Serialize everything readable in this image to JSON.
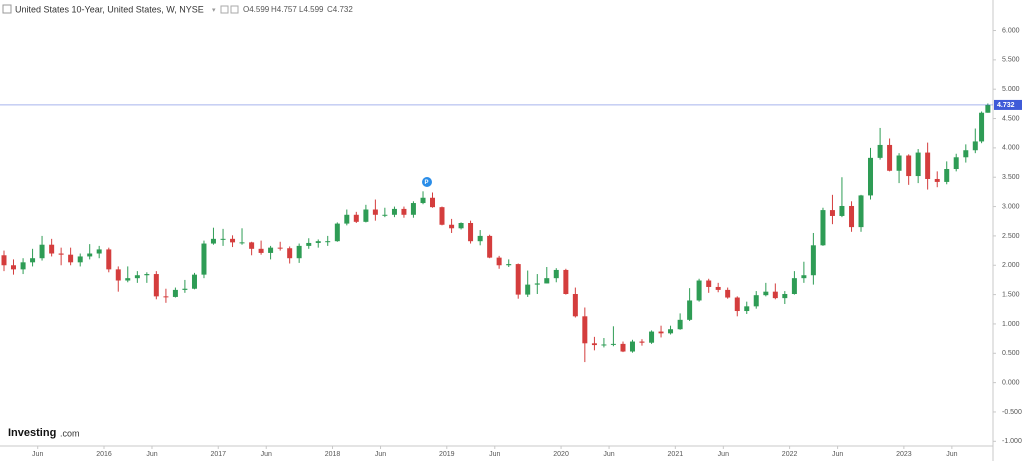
{
  "chart_data": {
    "type": "candlestick",
    "title": "United States 10-Year, United States, W, NYSE",
    "ohlc_labels": [
      "O4.599",
      "H4.757",
      "L4.599",
      "C4.732"
    ],
    "up_color": "#2e9c55",
    "down_color": "#d43d3d",
    "price_line_color": "#3f5bd8",
    "x": [
      2015.125,
      2015.208,
      2015.292,
      2015.375,
      2015.458,
      2015.542,
      2015.625,
      2015.708,
      2015.792,
      2015.875,
      2015.958,
      2016.042,
      2016.125,
      2016.208,
      2016.292,
      2016.375,
      2016.458,
      2016.542,
      2016.625,
      2016.708,
      2016.792,
      2016.875,
      2016.958,
      2017.042,
      2017.125,
      2017.208,
      2017.292,
      2017.375,
      2017.458,
      2017.542,
      2017.625,
      2017.708,
      2017.792,
      2017.875,
      2017.958,
      2018.042,
      2018.125,
      2018.208,
      2018.292,
      2018.375,
      2018.458,
      2018.542,
      2018.625,
      2018.708,
      2018.792,
      2018.875,
      2018.958,
      2019.042,
      2019.125,
      2019.208,
      2019.292,
      2019.375,
      2019.458,
      2019.542,
      2019.625,
      2019.708,
      2019.792,
      2019.875,
      2019.958,
      2020.042,
      2020.125,
      2020.208,
      2020.292,
      2020.375,
      2020.458,
      2020.542,
      2020.625,
      2020.708,
      2020.792,
      2020.875,
      2020.958,
      2021.042,
      2021.125,
      2021.208,
      2021.292,
      2021.375,
      2021.458,
      2021.542,
      2021.625,
      2021.708,
      2021.792,
      2021.875,
      2021.958,
      2022.042,
      2022.125,
      2022.208,
      2022.292,
      2022.375,
      2022.458,
      2022.542,
      2022.625,
      2022.708,
      2022.792,
      2022.875,
      2022.958,
      2023.042,
      2023.125,
      2023.208,
      2023.292,
      2023.375,
      2023.458,
      2023.542,
      2023.625,
      2023.68,
      2023.735
    ],
    "open": [
      2.17,
      2.0,
      1.93,
      2.05,
      2.12,
      2.35,
      2.2,
      2.18,
      2.05,
      2.15,
      2.2,
      2.27,
      1.93,
      1.74,
      1.78,
      1.83,
      1.85,
      1.47,
      1.46,
      1.58,
      1.6,
      1.84,
      2.37,
      2.45,
      2.45,
      2.39,
      2.39,
      2.28,
      2.21,
      2.3,
      2.29,
      2.12,
      2.33,
      2.38,
      2.41,
      2.41,
      2.71,
      2.86,
      2.74,
      2.95,
      2.86,
      2.86,
      2.96,
      2.86,
      3.06,
      3.15,
      2.99,
      2.69,
      2.63,
      2.72,
      2.41,
      2.5,
      2.13,
      2.0,
      2.02,
      1.5,
      1.67,
      1.69,
      1.78,
      1.92,
      1.51,
      1.13,
      0.67,
      0.64,
      0.65,
      0.66,
      0.53,
      0.7,
      0.68,
      0.87,
      0.84,
      0.91,
      1.07,
      1.4,
      1.74,
      1.63,
      1.58,
      1.45,
      1.22,
      1.3,
      1.49,
      1.55,
      1.44,
      1.51,
      1.78,
      1.83,
      2.34,
      2.94,
      2.84,
      3.01,
      2.65,
      3.19,
      3.83,
      4.05,
      3.61,
      3.87,
      3.52,
      3.92,
      3.47,
      3.42,
      3.64,
      3.84,
      3.96,
      4.11,
      4.599
    ],
    "high": [
      2.25,
      2.1,
      2.12,
      2.28,
      2.5,
      2.45,
      2.3,
      2.3,
      2.2,
      2.36,
      2.33,
      2.3,
      1.98,
      1.98,
      1.9,
      1.88,
      1.9,
      1.6,
      1.62,
      1.75,
      1.87,
      2.42,
      2.64,
      2.62,
      2.51,
      2.63,
      2.4,
      2.42,
      2.33,
      2.4,
      2.32,
      2.37,
      2.46,
      2.44,
      2.5,
      2.73,
      2.95,
      2.91,
      3.03,
      3.12,
      2.98,
      3.0,
      3.0,
      3.09,
      3.26,
      3.24,
      3.0,
      2.79,
      2.73,
      2.76,
      2.6,
      2.52,
      2.16,
      2.1,
      2.03,
      1.91,
      1.85,
      1.97,
      1.95,
      1.94,
      1.62,
      1.28,
      0.78,
      0.76,
      0.96,
      0.7,
      0.73,
      0.74,
      0.89,
      0.97,
      0.97,
      1.18,
      1.61,
      1.77,
      1.77,
      1.7,
      1.62,
      1.47,
      1.38,
      1.56,
      1.7,
      1.69,
      1.56,
      1.9,
      2.06,
      2.55,
      2.98,
      3.2,
      3.5,
      3.09,
      3.2,
      4.0,
      4.34,
      4.16,
      3.91,
      3.89,
      3.98,
      4.09,
      3.6,
      3.77,
      3.9,
      4.06,
      4.33,
      4.62,
      4.757
    ],
    "low": [
      1.9,
      1.84,
      1.85,
      1.98,
      2.08,
      2.15,
      2.0,
      2.0,
      1.98,
      2.1,
      2.12,
      1.88,
      1.55,
      1.71,
      1.7,
      1.7,
      1.42,
      1.36,
      1.45,
      1.53,
      1.59,
      1.78,
      2.35,
      2.33,
      2.31,
      2.35,
      2.17,
      2.18,
      2.1,
      2.25,
      2.03,
      2.04,
      2.28,
      2.3,
      2.33,
      2.4,
      2.68,
      2.72,
      2.73,
      2.76,
      2.82,
      2.82,
      2.81,
      2.81,
      3.04,
      2.98,
      2.68,
      2.55,
      2.61,
      2.37,
      2.34,
      2.12,
      1.94,
      1.97,
      1.43,
      1.46,
      1.51,
      1.69,
      1.71,
      1.5,
      1.11,
      0.35,
      0.55,
      0.6,
      0.62,
      0.52,
      0.51,
      0.63,
      0.66,
      0.77,
      0.82,
      0.9,
      1.05,
      1.38,
      1.53,
      1.54,
      1.43,
      1.13,
      1.17,
      1.26,
      1.47,
      1.42,
      1.34,
      1.5,
      1.7,
      1.67,
      2.33,
      2.7,
      2.82,
      2.57,
      2.57,
      3.12,
      3.8,
      3.6,
      3.4,
      3.37,
      3.4,
      3.29,
      3.33,
      3.38,
      3.6,
      3.75,
      3.91,
      4.08,
      4.599
    ],
    "close": [
      2.0,
      1.93,
      2.05,
      2.12,
      2.35,
      2.2,
      2.18,
      2.05,
      2.15,
      2.2,
      2.27,
      1.93,
      1.74,
      1.78,
      1.83,
      1.85,
      1.47,
      1.46,
      1.58,
      1.6,
      1.84,
      2.37,
      2.45,
      2.45,
      2.39,
      2.39,
      2.28,
      2.21,
      2.3,
      2.29,
      2.12,
      2.33,
      2.38,
      2.41,
      2.41,
      2.71,
      2.86,
      2.74,
      2.95,
      2.86,
      2.86,
      2.96,
      2.86,
      3.06,
      3.15,
      2.99,
      2.69,
      2.63,
      2.72,
      2.41,
      2.5,
      2.13,
      2.0,
      2.02,
      1.5,
      1.67,
      1.69,
      1.78,
      1.92,
      1.51,
      1.13,
      0.67,
      0.64,
      0.65,
      0.66,
      0.53,
      0.7,
      0.68,
      0.87,
      0.84,
      0.91,
      1.07,
      1.4,
      1.74,
      1.63,
      1.58,
      1.45,
      1.22,
      1.3,
      1.49,
      1.55,
      1.44,
      1.51,
      1.78,
      1.83,
      2.34,
      2.94,
      2.84,
      3.01,
      2.65,
      3.19,
      3.83,
      4.05,
      3.61,
      3.87,
      3.52,
      3.92,
      3.47,
      3.42,
      3.64,
      3.84,
      3.96,
      4.11,
      4.599,
      4.732
    ],
    "xlim": [
      2015.09,
      2023.78
    ],
    "xticks": [
      {
        "value": 2015.42,
        "label": "Jun"
      },
      {
        "value": 2016,
        "label": "2016"
      },
      {
        "value": 2016.42,
        "label": "Jun"
      },
      {
        "value": 2017,
        "label": "2017"
      },
      {
        "value": 2017.42,
        "label": "Jun"
      },
      {
        "value": 2018,
        "label": "2018"
      },
      {
        "value": 2018.42,
        "label": "Jun"
      },
      {
        "value": 2019,
        "label": "2019"
      },
      {
        "value": 2019.42,
        "label": "Jun"
      },
      {
        "value": 2020,
        "label": "2020"
      },
      {
        "value": 2020.42,
        "label": "Jun"
      },
      {
        "value": 2021,
        "label": "2021"
      },
      {
        "value": 2021.42,
        "label": "Jun"
      },
      {
        "value": 2022,
        "label": "2022"
      },
      {
        "value": 2022.42,
        "label": "Jun"
      },
      {
        "value": 2023,
        "label": "2023"
      },
      {
        "value": 2023.42,
        "label": "Jun"
      }
    ],
    "ylim": [
      -1.08,
      6.52
    ],
    "yticks": [
      {
        "value": 6,
        "label": "6.000"
      },
      {
        "value": 5.5,
        "label": "5.500"
      },
      {
        "value": 5,
        "label": "5.000"
      },
      {
        "value": 4.5,
        "label": "4.500"
      },
      {
        "value": 4,
        "label": "4.000"
      },
      {
        "value": 3.5,
        "label": "3.500"
      },
      {
        "value": 3,
        "label": "3.000"
      },
      {
        "value": 2.5,
        "label": "2.500"
      },
      {
        "value": 2,
        "label": "2.000"
      },
      {
        "value": 1.5,
        "label": "1.500"
      },
      {
        "value": 1,
        "label": "1.000"
      },
      {
        "value": 0.5,
        "label": "0.500"
      },
      {
        "value": 0,
        "label": "0.000"
      },
      {
        "value": -0.5,
        "label": "-0.500"
      },
      {
        "value": -1,
        "label": "-1.000"
      }
    ]
  },
  "logo": {
    "brand": "Investing",
    "suffix": ".com"
  }
}
